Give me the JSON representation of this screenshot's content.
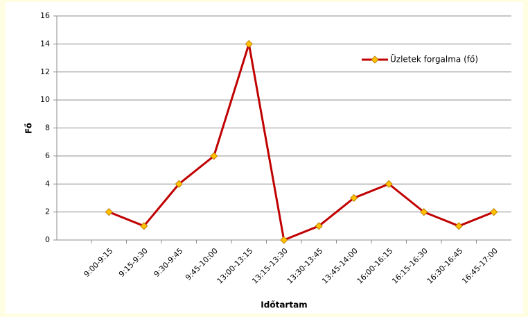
{
  "chart_data": {
    "type": "line",
    "categories": [
      "9:00-9:15",
      "9:15-9:30",
      "9:30-9:45",
      "9:45-10:00",
      "13:00-13:15",
      "13:15-13:30",
      "13:30-13:45",
      "13:45-14:00",
      "16:00-16:15",
      "16:15-16:30",
      "16:30-16:45",
      "16:45-17:00"
    ],
    "series": [
      {
        "name": "Üzletek forgalma (fő)",
        "color": "#c00000",
        "marker_color": "#ffc000",
        "values": [
          2,
          1,
          4,
          6,
          14,
          0,
          1,
          3,
          4,
          2,
          1,
          2
        ]
      }
    ],
    "ylabel": "Fő",
    "xlabel": "Időtartam",
    "ylim": [
      0,
      16
    ],
    "yticks": [
      0,
      2,
      4,
      6,
      8,
      10,
      12,
      14,
      16
    ],
    "grid": true,
    "legend": "upper right"
  }
}
